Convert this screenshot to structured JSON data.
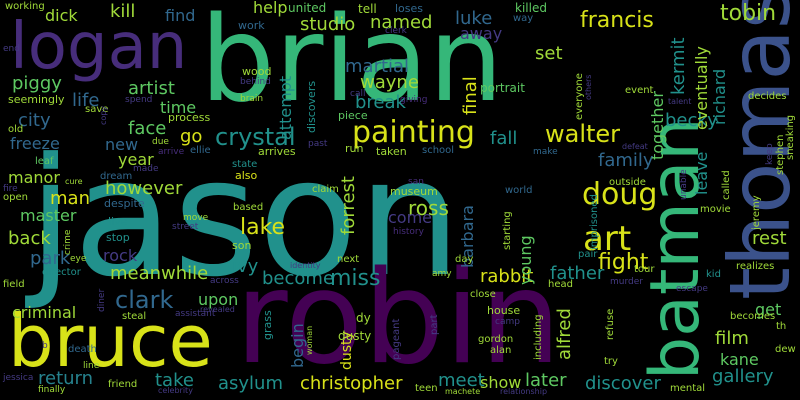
{
  "cloud": {
    "palette": {
      "yellow": "#d8e219",
      "green": "#35b779",
      "teal": "#21918c",
      "blue": "#3b528b",
      "indigo": "#472d7b",
      "purple": "#440154",
      "lime": "#a0da39",
      "lightgreen": "#5ec962",
      "cyan": "#1f9e89",
      "slate": "#31688e",
      "deepblue": "#443a83",
      "darkteal": "#26828e"
    },
    "words": {
      "jason": "jason",
      "robin": "robin",
      "brian": "brian",
      "thomas": "thomas",
      "batman": "batman",
      "bruce": "bruce",
      "logan": "logan",
      "painting": "painting",
      "art": "art",
      "doug": "doug",
      "crystal": "crystal",
      "lake": "lake",
      "clark": "clark",
      "francis": "francis",
      "tobin": "tobin",
      "kermit": "kermit",
      "eventually": "eventually",
      "richard": "richard",
      "walter": "walter",
      "becky": "becky",
      "fight": "fight",
      "fall": "fall",
      "final": "final",
      "forrest": "forrest",
      "ross": "ross",
      "barbara": "barbara",
      "young": "young",
      "alfred": "alfred",
      "father": "father",
      "rabbit": "rabbit",
      "miss": "miss",
      "become": "become",
      "ivy": "ivy",
      "meanwhile": "meanwhile",
      "rock": "rock",
      "park": "park",
      "back": "back",
      "master": "master",
      "man": "man",
      "manor": "manor",
      "freeze": "freeze",
      "city": "city",
      "life": "life",
      "piggy": "piggy",
      "dick": "dick",
      "kill": "kill",
      "find": "find",
      "help": "help",
      "studio": "studio",
      "named": "named",
      "luke": "luke",
      "away": "away",
      "set": "set",
      "martial": "martial",
      "wayne": "wayne",
      "break": "break",
      "attempt": "attempt",
      "artist": "artist",
      "time": "time",
      "face": "face",
      "go": "go",
      "new": "new",
      "year": "year",
      "however": "however",
      "family": "family",
      "together": "together",
      "leave": "leave",
      "rest": "rest",
      "criminal": "criminal",
      "return": "return",
      "take": "take",
      "asylum": "asylum",
      "christopher": "christopher",
      "meet": "meet",
      "show": "show",
      "later": "later",
      "discover": "discover",
      "gallery": "gallery",
      "kane": "kane",
      "film": "film",
      "get": "get",
      "upon": "upon",
      "begin": "begin",
      "come": "come",
      "dusty": "dusty",
      "working": "working",
      "end": "end",
      "united": "united",
      "tell": "tell",
      "killed": "killed",
      "loses": "loses",
      "way": "way",
      "clerk": "clerk",
      "work": "work",
      "wood": "wood",
      "behind": "behind",
      "brain": "brain",
      "call": "call",
      "giving": "giving",
      "portrait": "portrait",
      "everyone": "everyone",
      "others": "others",
      "event": "event",
      "talent": "talent",
      "decides": "decides",
      "sneaking": "sneaking",
      "stephen": "stephen",
      "keep": "keep",
      "seemingly": "seemingly",
      "spend": "spend",
      "save": "save",
      "copy": "copy",
      "old": "old",
      "process": "process",
      "due": "due",
      "arrive": "arrive",
      "ellie": "ellie",
      "discovers": "discovers",
      "past": "past",
      "piece": "piece",
      "run": "run",
      "taken": "taken",
      "school": "school",
      "make": "make",
      "defeat": "defeat",
      "unable": "unable",
      "called": "called",
      "leaf": "leaf",
      "dream": "dream",
      "made": "made",
      "state": "state",
      "arrives": "arrives",
      "also": "also",
      "claim": "claim",
      "museum": "museum",
      "san": "san",
      "world": "world",
      "starting": "starting",
      "imprisoned": "imprisoned",
      "outside": "outside",
      "movie": "movie",
      "jeremy": "jeremy",
      "realizes": "realizes",
      "cure": "cure",
      "fire": "fire",
      "open": "open",
      "despite": "despite",
      "based": "based",
      "move": "move",
      "street": "street",
      "history": "history",
      "tour": "tour",
      "live": "live",
      "stop": "stop",
      "son": "son",
      "crime": "crime",
      "eye": "eye",
      "director": "director",
      "field": "field",
      "identity": "identity",
      "next": "next",
      "day": "day",
      "amy": "amy",
      "pair": "pair",
      "head": "head",
      "murder": "murder",
      "close": "close",
      "kid": "kid",
      "escape": "escape",
      "becomes": "becomes",
      "th": "th",
      "diner": "diner",
      "steal": "steal",
      "assistant": "assistant",
      "across": "across",
      "revealed": "revealed",
      "grass": "grass",
      "woman": "woman",
      "pageant": "pageant",
      "dy": "dy",
      "part": "part",
      "house": "house",
      "camp": "camp",
      "including": "including",
      "refuse": "refuse",
      "gordon": "gordon",
      "alan": "alan",
      "try": "try",
      "teen": "teen",
      "machete": "machete",
      "relationship": "relationship",
      "mental": "mental",
      "dew": "dew",
      "jessica": "jessica",
      "finally": "finally",
      "line": "line",
      "friend": "friend",
      "celebrity": "celebrity",
      "death": "death",
      "b": "b"
    }
  }
}
